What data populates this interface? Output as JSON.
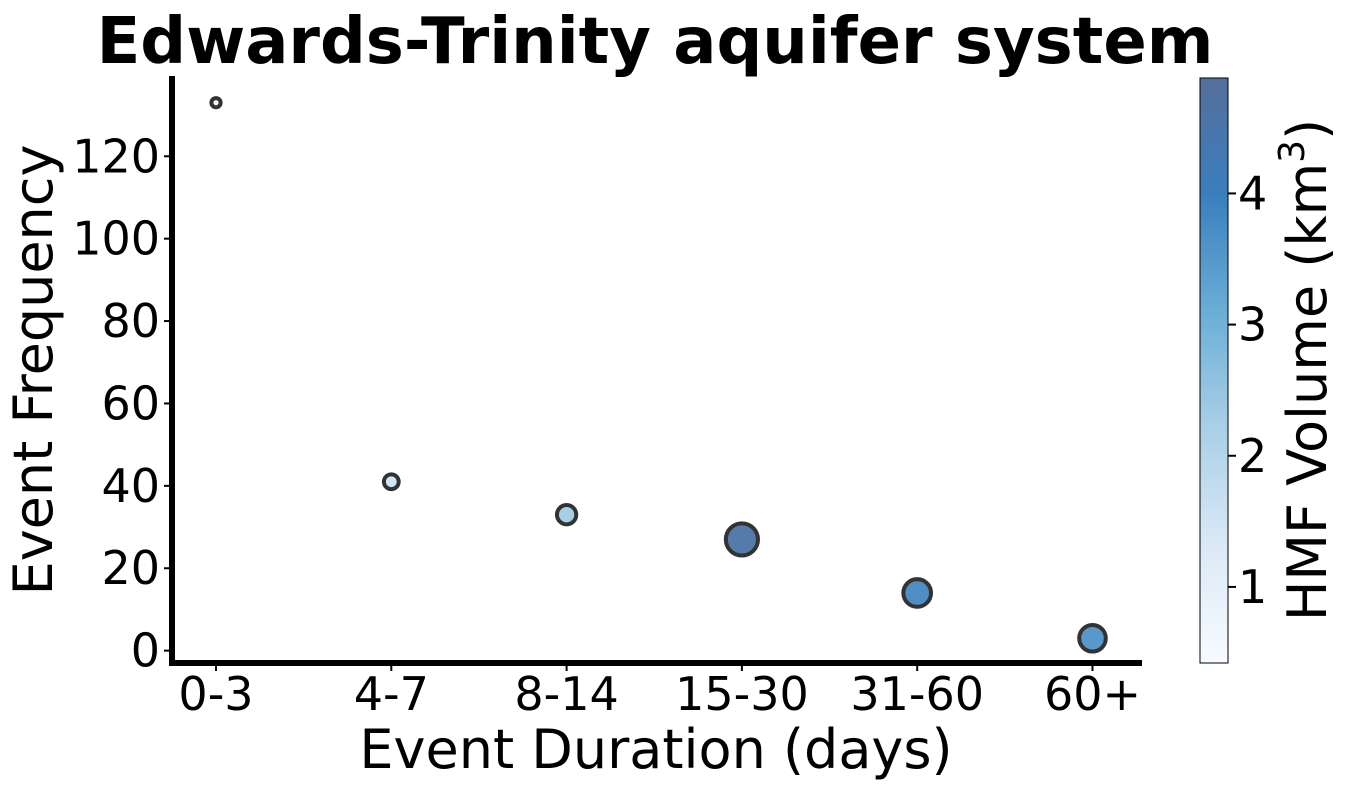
{
  "chart_data": {
    "type": "scatter",
    "title": "Edwards-Trinity aquifer system",
    "xlabel": "Event Duration (days)",
    "ylabel": "Event Frequency",
    "categories": [
      "0-3",
      "4-7",
      "8-14",
      "15-30",
      "31-60",
      "60+"
    ],
    "y": [
      133,
      41,
      33,
      27,
      14,
      3
    ],
    "color_values": [
      0.5,
      1.5,
      2.3,
      4.6,
      3.8,
      3.6
    ],
    "yticks": [
      0,
      20,
      40,
      60,
      80,
      100,
      120
    ],
    "ylim": [
      -3,
      139
    ],
    "grid": false,
    "colorbar": {
      "label_main": "HMF Volume (km",
      "label_sup": "3",
      "label_end": ")",
      "ticks": [
        1,
        2,
        3,
        4
      ],
      "range": [
        0.42,
        4.88
      ],
      "colormap": "Blues"
    },
    "colors": {
      "edge": "#333333",
      "axis": "#000000"
    }
  }
}
